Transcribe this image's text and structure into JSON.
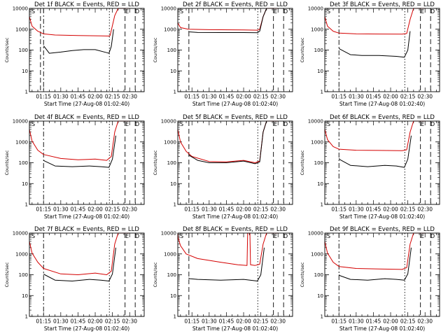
{
  "chart_data": [
    {
      "type": "line",
      "title": "Det 1f BLACK = Events, RED = LLD",
      "xlabel": "Start Time (27-Aug-08 01:02:40)",
      "ylabel": "Counts/sec",
      "yscale": "log",
      "ylim": [
        1,
        10000
      ],
      "xlim": [
        "01:02:40",
        "02:42:40"
      ],
      "xticks": [
        "01:15",
        "01:30",
        "01:45",
        "02:00",
        "02:15",
        "02:30"
      ],
      "yticks": [
        "1",
        "10",
        "100",
        "1000",
        "10000"
      ],
      "markers": [
        "S",
        "E",
        "D"
      ],
      "vlines": [
        {
          "x": "01:12:20",
          "style": "dash"
        },
        {
          "x": "01:15:00",
          "style": "dashdot"
        },
        {
          "x": "02:12:20",
          "style": "dot"
        },
        {
          "x": "02:26:00",
          "style": "dash"
        },
        {
          "x": "02:34:50",
          "style": "dash"
        }
      ],
      "series": [
        {
          "color": "#d40000",
          "x": [
            "01:02:40",
            "01:05:00",
            "01:10:00",
            "01:15:00",
            "01:25:00",
            "01:35:00",
            "01:45:00",
            "01:55:00",
            "02:05:00",
            "02:12:00",
            "02:13:00",
            "02:17:00",
            "02:20:00",
            "02:30:00"
          ],
          "y": [
            4000,
            1400,
            800,
            600,
            530,
            510,
            500,
            490,
            480,
            470,
            500,
            4500,
            10000,
            10000
          ]
        },
        {
          "color": "#000000",
          "x": [
            "01:15:00",
            "01:15:30",
            "01:20:00",
            "01:30:00",
            "01:40:00",
            "01:50:00",
            "02:00:00",
            "02:10:00",
            "02:12:00",
            "02:14:00",
            "02:16:00"
          ],
          "y": [
            160,
            150,
            70,
            80,
            95,
            105,
            105,
            75,
            70,
            150,
            1000
          ]
        }
      ]
    },
    {
      "type": "line",
      "title": "Det 2f BLACK = Events, RED = LLD",
      "xlabel": "Start Time (27-Aug-08 01:02:40)",
      "ylabel": "Counts/sec",
      "yscale": "log",
      "ylim": [
        1,
        10000
      ],
      "xlim": [
        "01:02:40",
        "02:42:40"
      ],
      "xticks": [
        "01:15",
        "01:30",
        "01:45",
        "02:00",
        "02:15",
        "02:30"
      ],
      "yticks": [
        "1",
        "10",
        "100",
        "1000",
        "10000"
      ],
      "markers": [
        "S",
        "E",
        "D"
      ],
      "vlines": [
        {
          "x": "01:12:20",
          "style": "dash"
        },
        {
          "x": "02:12:20",
          "style": "dot"
        },
        {
          "x": "02:26:00",
          "style": "dash"
        },
        {
          "x": "02:34:50",
          "style": "dash"
        }
      ],
      "series": [
        {
          "color": "#d40000",
          "x": [
            "01:02:40",
            "01:05:00",
            "01:10:00",
            "01:12:00",
            "01:30:00",
            "02:00:00",
            "02:12:00",
            "02:14:00",
            "02:17:00",
            "02:20:00",
            "02:30:00"
          ],
          "y": [
            2000,
            1200,
            1050,
            1000,
            950,
            920,
            900,
            1000,
            4000,
            10000,
            10000
          ]
        },
        {
          "color": "#000000",
          "x": [
            "01:12:00",
            "01:12:30",
            "01:20:00",
            "01:40:00",
            "02:00:00",
            "02:12:00",
            "02:14:00",
            "02:17:00",
            "02:20:00"
          ],
          "y": [
            800,
            750,
            700,
            690,
            690,
            680,
            800,
            4000,
            10000
          ]
        }
      ]
    },
    {
      "type": "line",
      "title": "Det 3f BLACK = Events, RED = LLD",
      "xlabel": "Start Time (27-Aug-08 01:02:40)",
      "ylabel": "Counts/sec",
      "yscale": "log",
      "ylim": [
        1,
        10000
      ],
      "xlim": [
        "01:02:40",
        "02:42:40"
      ],
      "xticks": [
        "01:15",
        "01:30",
        "01:45",
        "02:00",
        "02:15",
        "02:30"
      ],
      "yticks": [
        "1",
        "10",
        "100",
        "1000",
        "10000"
      ],
      "markers": [
        "S",
        "E",
        "D"
      ],
      "vlines": [
        {
          "x": "01:15:00",
          "style": "dashdot"
        },
        {
          "x": "02:12:20",
          "style": "dot"
        },
        {
          "x": "02:26:00",
          "style": "dash"
        },
        {
          "x": "02:34:50",
          "style": "dash"
        }
      ],
      "series": [
        {
          "color": "#d40000",
          "x": [
            "01:02:40",
            "01:05:00",
            "01:10:00",
            "01:15:00",
            "01:30:00",
            "01:50:00",
            "02:10:00",
            "02:14:00",
            "02:17:00",
            "02:20:00",
            "02:30:00"
          ],
          "y": [
            4000,
            1400,
            800,
            650,
            600,
            590,
            580,
            620,
            3000,
            10000,
            10000
          ]
        },
        {
          "color": "#000000",
          "x": [
            "01:15:00",
            "01:16:00",
            "01:25:00",
            "01:35:00",
            "01:50:00",
            "02:05:00",
            "02:12:00",
            "02:15:00",
            "02:17:00"
          ],
          "y": [
            120,
            110,
            60,
            55,
            55,
            50,
            45,
            100,
            800
          ]
        }
      ]
    },
    {
      "type": "line",
      "title": "Det 4f BLACK = Events, RED = LLD",
      "xlabel": "Start Time (27-Aug-08 01:02:40)",
      "ylabel": "Counts/sec",
      "yscale": "log",
      "ylim": [
        1,
        10000
      ],
      "xlim": [
        "01:02:40",
        "02:42:40"
      ],
      "xticks": [
        "01:15",
        "01:30",
        "01:45",
        "02:00",
        "02:15",
        "02:30"
      ],
      "yticks": [
        "1",
        "10",
        "100",
        "1000",
        "10000"
      ],
      "markers": [
        "S",
        "E",
        "D"
      ],
      "vlines": [
        {
          "x": "01:15:00",
          "style": "dashdot"
        },
        {
          "x": "02:12:20",
          "style": "dot"
        },
        {
          "x": "02:26:00",
          "style": "dash"
        },
        {
          "x": "02:34:50",
          "style": "dash"
        }
      ],
      "series": [
        {
          "color": "#d40000",
          "x": [
            "01:02:40",
            "01:05:00",
            "01:10:00",
            "01:15:00",
            "01:30:00",
            "01:45:00",
            "02:00:00",
            "02:10:00",
            "02:14:00",
            "02:17:00",
            "02:20:00",
            "02:30:00"
          ],
          "y": [
            4000,
            1100,
            400,
            250,
            160,
            140,
            150,
            130,
            200,
            3000,
            10000,
            10000
          ]
        },
        {
          "color": "#000000",
          "x": [
            "01:15:00",
            "01:16:00",
            "01:25:00",
            "01:40:00",
            "01:55:00",
            "02:05:00",
            "02:12:00",
            "02:15:00",
            "02:18:00"
          ],
          "y": [
            130,
            120,
            70,
            65,
            70,
            65,
            60,
            150,
            2000
          ]
        }
      ]
    },
    {
      "type": "line",
      "title": "Det 5f BLACK = Events, RED = LLD",
      "xlabel": "Start Time (27-Aug-08 01:02:40)",
      "ylabel": "Counts/sec",
      "yscale": "log",
      "ylim": [
        1,
        10000
      ],
      "xlim": [
        "01:02:40",
        "02:42:40"
      ],
      "xticks": [
        "01:15",
        "01:30",
        "01:45",
        "02:00",
        "02:15",
        "02:30"
      ],
      "yticks": [
        "1",
        "10",
        "100",
        "1000",
        "10000"
      ],
      "markers": [
        "S",
        "E",
        "D"
      ],
      "vlines": [
        {
          "x": "01:12:20",
          "style": "dash"
        },
        {
          "x": "02:12:20",
          "style": "dot"
        },
        {
          "x": "02:26:00",
          "style": "dash"
        },
        {
          "x": "02:34:50",
          "style": "dash"
        }
      ],
      "series": [
        {
          "color": "#d40000",
          "x": [
            "01:02:40",
            "01:05:00",
            "01:10:00",
            "01:15:00",
            "01:30:00",
            "01:45:00",
            "02:00:00",
            "02:10:00",
            "02:14:00",
            "02:17:00",
            "02:20:00",
            "02:30:00"
          ],
          "y": [
            4000,
            1000,
            350,
            200,
            115,
            110,
            130,
            100,
            120,
            3000,
            10000,
            10000
          ]
        },
        {
          "color": "#000000",
          "x": [
            "01:12:00",
            "01:13:00",
            "01:20:00",
            "01:30:00",
            "01:45:00",
            "02:00:00",
            "02:10:00",
            "02:14:00",
            "02:17:00",
            "02:20:00"
          ],
          "y": [
            250,
            220,
            130,
            100,
            100,
            120,
            90,
            110,
            3000,
            10000
          ]
        }
      ]
    },
    {
      "type": "line",
      "title": "Det 6f BLACK = Events, RED = LLD",
      "xlabel": "Start Time (27-Aug-08 01:02:40)",
      "ylabel": "Counts/sec",
      "yscale": "log",
      "ylim": [
        1,
        10000
      ],
      "xlim": [
        "01:02:40",
        "02:42:40"
      ],
      "xticks": [
        "01:15",
        "01:30",
        "01:45",
        "02:00",
        "02:15",
        "02:30"
      ],
      "yticks": [
        "1",
        "10",
        "100",
        "1000",
        "10000"
      ],
      "markers": [
        "S",
        "E",
        "D"
      ],
      "vlines": [
        {
          "x": "01:15:00",
          "style": "dashdot"
        },
        {
          "x": "02:12:20",
          "style": "dot"
        },
        {
          "x": "02:26:00",
          "style": "dash"
        },
        {
          "x": "02:34:50",
          "style": "dash"
        }
      ],
      "series": [
        {
          "color": "#d40000",
          "x": [
            "01:02:40",
            "01:05:00",
            "01:10:00",
            "01:15:00",
            "01:30:00",
            "01:50:00",
            "02:10:00",
            "02:14:00",
            "02:17:00",
            "02:20:00",
            "02:30:00"
          ],
          "y": [
            4000,
            1300,
            600,
            450,
            400,
            390,
            380,
            420,
            3000,
            10000,
            10000
          ]
        },
        {
          "color": "#000000",
          "x": [
            "01:15:00",
            "01:16:00",
            "01:25:00",
            "01:40:00",
            "01:55:00",
            "02:05:00",
            "02:12:00",
            "02:15:00",
            "02:18:00"
          ],
          "y": [
            160,
            140,
            75,
            65,
            75,
            70,
            60,
            150,
            2000
          ]
        }
      ]
    },
    {
      "type": "line",
      "title": "Det 7f BLACK = Events, RED = LLD",
      "xlabel": "Start Time (27-Aug-08 01:02:40)",
      "ylabel": "Counts/sec",
      "yscale": "log",
      "ylim": [
        1,
        10000
      ],
      "xlim": [
        "01:02:40",
        "02:42:40"
      ],
      "xticks": [
        "01:15",
        "01:30",
        "01:45",
        "02:00",
        "02:15",
        "02:30"
      ],
      "yticks": [
        "1",
        "10",
        "100",
        "1000",
        "10000"
      ],
      "markers": [
        "S",
        "E",
        "D"
      ],
      "vlines": [
        {
          "x": "01:15:00",
          "style": "dashdot"
        },
        {
          "x": "02:12:20",
          "style": "dot"
        },
        {
          "x": "02:26:00",
          "style": "dash"
        },
        {
          "x": "02:34:50",
          "style": "dash"
        }
      ],
      "series": [
        {
          "color": "#d40000",
          "x": [
            "01:02:40",
            "01:05:00",
            "01:10:00",
            "01:15:00",
            "01:30:00",
            "01:45:00",
            "02:00:00",
            "02:10:00",
            "02:14:00",
            "02:17:00",
            "02:20:00",
            "02:30:00"
          ],
          "y": [
            4000,
            1100,
            400,
            200,
            110,
            100,
            120,
            100,
            150,
            3000,
            10000,
            10000
          ]
        },
        {
          "color": "#000000",
          "x": [
            "01:15:00",
            "01:16:00",
            "01:25:00",
            "01:40:00",
            "01:55:00",
            "02:05:00",
            "02:12:00",
            "02:15:00",
            "02:18:00"
          ],
          "y": [
            110,
            100,
            55,
            50,
            60,
            55,
            50,
            110,
            2000
          ]
        }
      ]
    },
    {
      "type": "line",
      "title": "Det 8f BLACK = Events, RED = LLD",
      "xlabel": "Start Time (27-Aug-08 01:02:40)",
      "ylabel": "Counts/sec",
      "yscale": "log",
      "ylim": [
        1,
        10000
      ],
      "xlim": [
        "01:02:40",
        "02:42:40"
      ],
      "xticks": [
        "01:15",
        "01:30",
        "01:45",
        "02:00",
        "02:15",
        "02:30"
      ],
      "yticks": [
        "1",
        "10",
        "100",
        "1000",
        "10000"
      ],
      "markers": [
        "S",
        "E",
        "D"
      ],
      "vlines": [
        {
          "x": "01:12:20",
          "style": "dash"
        },
        {
          "x": "02:12:20",
          "style": "dot"
        },
        {
          "x": "02:26:00",
          "style": "dash"
        },
        {
          "x": "02:34:50",
          "style": "dash"
        }
      ],
      "series": [
        {
          "color": "#d40000",
          "x": [
            "01:02:40",
            "01:03:00",
            "01:05:00",
            "01:10:00",
            "01:20:00",
            "01:40:00",
            "01:55:00",
            "02:03:00",
            "02:03:30",
            "02:05:30",
            "02:06:00",
            "02:10:00",
            "02:14:00",
            "02:17:00",
            "02:20:00",
            "02:30:00"
          ],
          "y": [
            10000,
            6000,
            2500,
            1000,
            600,
            400,
            300,
            280,
            10000,
            10000,
            300,
            280,
            320,
            3000,
            10000,
            10000
          ]
        },
        {
          "color": "#000000",
          "x": [
            "01:12:00",
            "01:13:00",
            "01:20:00",
            "01:40:00",
            "02:00:00",
            "02:12:00",
            "02:15:00",
            "02:18:00"
          ],
          "y": [
            70,
            65,
            60,
            55,
            60,
            50,
            100,
            2000
          ]
        }
      ]
    },
    {
      "type": "line",
      "title": "Det 9f BLACK = Events, RED = LLD",
      "xlabel": "Start Time (27-Aug-08 01:02:40)",
      "ylabel": "Counts/sec",
      "yscale": "log",
      "ylim": [
        1,
        10000
      ],
      "xlim": [
        "01:02:40",
        "02:42:40"
      ],
      "xticks": [
        "01:15",
        "01:30",
        "01:45",
        "02:00",
        "02:15",
        "02:30"
      ],
      "yticks": [
        "1",
        "10",
        "100",
        "1000",
        "10000"
      ],
      "markers": [
        "S",
        "E",
        "D"
      ],
      "vlines": [
        {
          "x": "01:15:00",
          "style": "dashdot"
        },
        {
          "x": "02:12:20",
          "style": "dot"
        },
        {
          "x": "02:26:00",
          "style": "dash"
        },
        {
          "x": "02:34:50",
          "style": "dash"
        }
      ],
      "series": [
        {
          "color": "#d40000",
          "x": [
            "01:02:40",
            "01:05:00",
            "01:10:00",
            "01:15:00",
            "01:30:00",
            "01:50:00",
            "02:10:00",
            "02:14:00",
            "02:17:00",
            "02:20:00",
            "02:30:00"
          ],
          "y": [
            4000,
            1100,
            400,
            250,
            200,
            190,
            180,
            220,
            3000,
            10000,
            10000
          ]
        },
        {
          "color": "#000000",
          "x": [
            "01:15:00",
            "01:16:00",
            "01:25:00",
            "01:40:00",
            "01:55:00",
            "02:05:00",
            "02:12:00",
            "02:15:00",
            "02:18:00"
          ],
          "y": [
            100,
            90,
            60,
            55,
            65,
            60,
            55,
            110,
            2000
          ]
        }
      ]
    }
  ]
}
